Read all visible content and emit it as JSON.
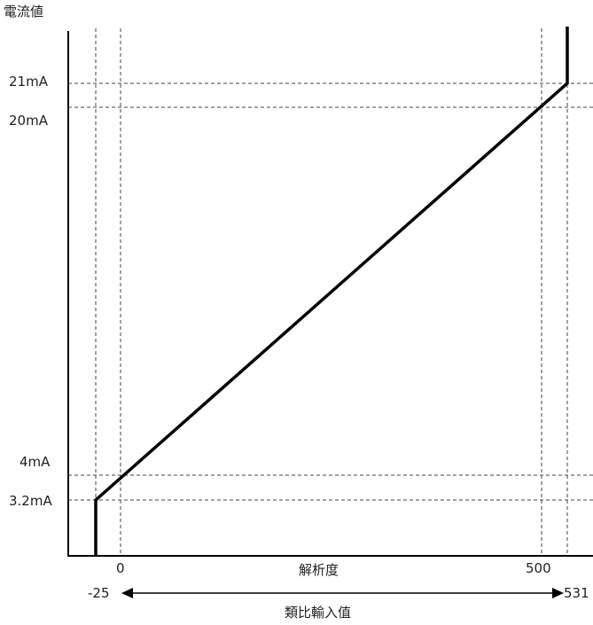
{
  "chart_data": {
    "type": "line",
    "ylabel": "電流値",
    "xlabel": "解析度",
    "range_label": "類比輸入值",
    "x_ticks": [
      {
        "value": 0,
        "label": "0"
      },
      {
        "value": 500,
        "label": "500"
      }
    ],
    "range_ends": [
      {
        "value": -25,
        "label": "-25"
      },
      {
        "value": 531,
        "label": "531"
      }
    ],
    "y_ticks": [
      {
        "value": 21,
        "label": "21mA"
      },
      {
        "value": 20,
        "label": "20mA"
      },
      {
        "value": 4,
        "label": "4mA"
      },
      {
        "value": 3.2,
        "label": "3.2mA"
      }
    ],
    "series": [
      {
        "x": [
          -25,
          -25,
          531,
          531
        ],
        "y": [
          0,
          3.2,
          21,
          22.5
        ],
        "color": "#000000"
      }
    ],
    "xlim": [
      -50,
      560
    ],
    "ylim": [
      0,
      23
    ],
    "grid": "dashed reference lines at labeled values"
  }
}
